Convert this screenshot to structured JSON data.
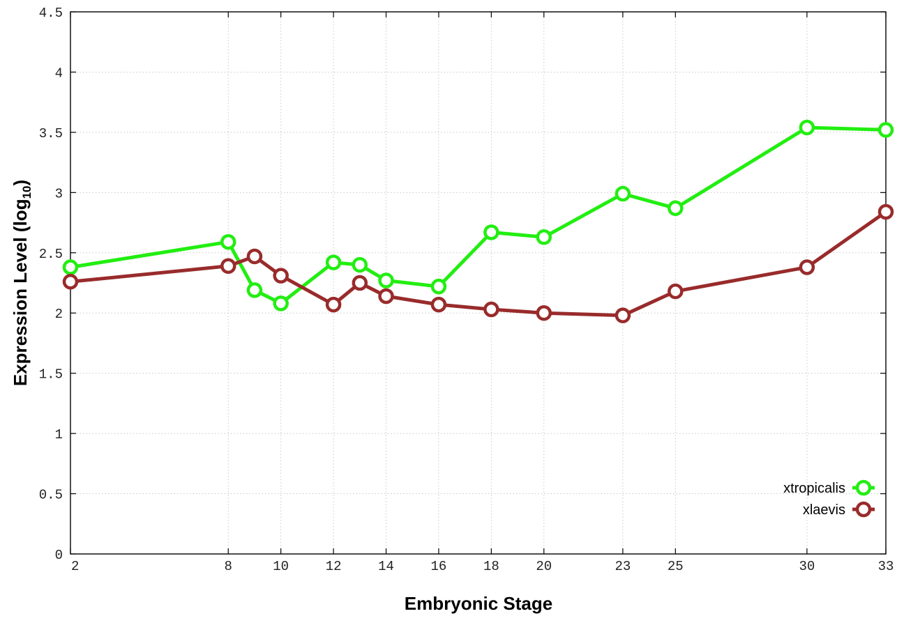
{
  "chart_data": {
    "type": "line",
    "title": "",
    "xlabel": "Embryonic Stage",
    "ylabel": "Expression Level (log",
    "ylabel_subscript": "10",
    "ylabel_close": ")",
    "x": [
      2,
      8,
      9,
      10,
      12,
      13,
      14,
      16,
      18,
      20,
      23,
      25,
      30,
      33
    ],
    "xticks": [
      "2",
      "8",
      "10",
      "12",
      "14",
      "16",
      "18",
      "20",
      "23",
      "25",
      "30",
      "33"
    ],
    "xtick_values": [
      2,
      8,
      10,
      12,
      14,
      16,
      18,
      20,
      23,
      25,
      30,
      33
    ],
    "xlim": [
      2,
      33
    ],
    "ylim": [
      0,
      4.5
    ],
    "yticks": [
      "0",
      "0.5",
      "1",
      "1.5",
      "2",
      "2.5",
      "3",
      "3.5",
      "4",
      "4.5"
    ],
    "ytick_values": [
      0,
      0.5,
      1,
      1.5,
      2,
      2.5,
      3,
      3.5,
      4,
      4.5
    ],
    "grid": true,
    "legend_position": "bottom-right",
    "series": [
      {
        "name": "xtropicalis",
        "color": "#22ee11",
        "values": [
          2.38,
          2.59,
          2.19,
          2.08,
          2.42,
          2.4,
          2.27,
          2.22,
          2.67,
          2.63,
          2.99,
          2.87,
          3.54,
          3.52
        ]
      },
      {
        "name": "xlaevis",
        "color": "#992b2b",
        "values": [
          2.26,
          2.39,
          2.47,
          2.31,
          2.07,
          2.25,
          2.14,
          2.07,
          2.03,
          2.0,
          1.98,
          2.18,
          2.38,
          2.84
        ]
      }
    ]
  }
}
